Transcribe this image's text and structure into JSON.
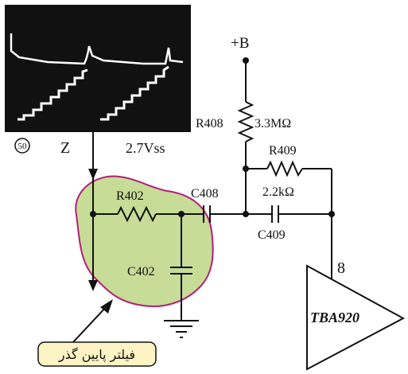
{
  "diagram": {
    "scope": {
      "marker": "50",
      "signal_label": "Z",
      "amplitude": "2.7Vss"
    },
    "supply": "+B",
    "components": {
      "r408": {
        "ref": "R408",
        "value": "3.3MΩ"
      },
      "r409": {
        "ref": "R409",
        "value": "2.2kΩ"
      },
      "r402": {
        "ref": "R402"
      },
      "c408": {
        "ref": "C408"
      },
      "c409": {
        "ref": "C409"
      },
      "c402": {
        "ref": "C402"
      }
    },
    "ic": {
      "name": "TBA920",
      "pin": "8"
    },
    "callout": "فیلتر پایین گذر",
    "colors": {
      "filter_fill": "#c7dc96",
      "filter_edge": "#b0207a",
      "callout_fill": "#fdf3c4",
      "scope_bg": "#111111"
    }
  }
}
